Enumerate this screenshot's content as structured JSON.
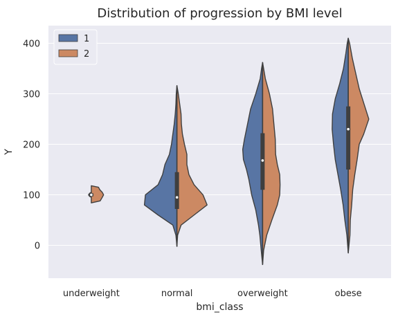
{
  "chart_data": {
    "type": "violin",
    "split": true,
    "title": "Distribution of progression by BMI level",
    "xlabel": "bmi_class",
    "ylabel": "Y",
    "categories": [
      "underweight",
      "normal",
      "overweight",
      "obese"
    ],
    "ylim": [
      -65,
      435
    ],
    "yticks": [
      0,
      100,
      200,
      300,
      400
    ],
    "grid": true,
    "legend": {
      "placement": "top-left",
      "entries": [
        "1",
        "2"
      ]
    },
    "colors": {
      "series_1": "#5875a4",
      "series_2": "#cc8963",
      "background": "#eaeaf2",
      "grid": "#ffffff",
      "outline": "#3f3f3f"
    },
    "series": [
      {
        "name": "1",
        "violins": [
          {
            "category": "underweight",
            "profile": [
              [
                95,
                0
              ],
              [
                97,
                0.05
              ],
              [
                100,
                0.08
              ],
              [
                103,
                0.05
              ],
              [
                105,
                0
              ]
            ],
            "quartiles": [
              97,
              100,
              103
            ]
          },
          {
            "category": "normal",
            "profile": [
              [
                -2,
                0
              ],
              [
                20,
                0.03
              ],
              [
                40,
                0.12
              ],
              [
                60,
                0.55
              ],
              [
                80,
                0.95
              ],
              [
                100,
                0.92
              ],
              [
                120,
                0.55
              ],
              [
                140,
                0.42
              ],
              [
                160,
                0.35
              ],
              [
                180,
                0.22
              ],
              [
                200,
                0.16
              ],
              [
                220,
                0.12
              ],
              [
                240,
                0.08
              ],
              [
                260,
                0.05
              ],
              [
                280,
                0.03
              ],
              [
                300,
                0.02
              ],
              [
                316,
                0
              ]
            ],
            "quartiles": [
              72,
              95,
              145
            ]
          },
          {
            "category": "overweight",
            "profile": [
              [
                -38,
                0
              ],
              [
                -10,
                0.04
              ],
              [
                20,
                0.08
              ],
              [
                40,
                0.12
              ],
              [
                70,
                0.2
              ],
              [
                100,
                0.32
              ],
              [
                130,
                0.4
              ],
              [
                150,
                0.47
              ],
              [
                170,
                0.56
              ],
              [
                190,
                0.58
              ],
              [
                210,
                0.53
              ],
              [
                240,
                0.44
              ],
              [
                270,
                0.35
              ],
              [
                300,
                0.2
              ],
              [
                330,
                0.07
              ],
              [
                350,
                0.03
              ],
              [
                362,
                0
              ]
            ],
            "quartiles": [
              110,
              168,
              222
            ]
          },
          {
            "category": "obese",
            "profile": [
              [
                -15,
                0
              ],
              [
                20,
                0.04
              ],
              [
                50,
                0.1
              ],
              [
                80,
                0.15
              ],
              [
                110,
                0.22
              ],
              [
                140,
                0.3
              ],
              [
                170,
                0.38
              ],
              [
                200,
                0.43
              ],
              [
                230,
                0.47
              ],
              [
                260,
                0.46
              ],
              [
                290,
                0.38
              ],
              [
                320,
                0.25
              ],
              [
                350,
                0.14
              ],
              [
                380,
                0.07
              ],
              [
                400,
                0.03
              ],
              [
                410,
                0
              ]
            ],
            "quartiles": [
              150,
              230,
              275
            ]
          }
        ]
      },
      {
        "name": "2",
        "violins": [
          {
            "category": "underweight",
            "profile": [
              [
                84,
                0
              ],
              [
                88,
                0.26
              ],
              [
                95,
                0.32
              ],
              [
                100,
                0.36
              ],
              [
                105,
                0.32
              ],
              [
                110,
                0.25
              ],
              [
                115,
                0.21
              ],
              [
                118,
                0
              ]
            ],
            "quartiles": [
              97,
              100,
              103
            ]
          },
          {
            "category": "normal",
            "profile": [
              [
                -2,
                0
              ],
              [
                20,
                0.02
              ],
              [
                40,
                0.12
              ],
              [
                60,
                0.5
              ],
              [
                80,
                0.88
              ],
              [
                100,
                0.76
              ],
              [
                120,
                0.5
              ],
              [
                140,
                0.35
              ],
              [
                160,
                0.29
              ],
              [
                180,
                0.29
              ],
              [
                200,
                0.22
              ],
              [
                220,
                0.16
              ],
              [
                240,
                0.13
              ],
              [
                260,
                0.12
              ],
              [
                280,
                0.08
              ],
              [
                300,
                0.04
              ],
              [
                316,
                0
              ]
            ],
            "quartiles": [
              72,
              95,
              145
            ]
          },
          {
            "category": "overweight",
            "profile": [
              [
                -38,
                0
              ],
              [
                -10,
                0.03
              ],
              [
                20,
                0.12
              ],
              [
                50,
                0.27
              ],
              [
                80,
                0.43
              ],
              [
                100,
                0.5
              ],
              [
                120,
                0.51
              ],
              [
                140,
                0.5
              ],
              [
                160,
                0.43
              ],
              [
                180,
                0.38
              ],
              [
                210,
                0.37
              ],
              [
                240,
                0.33
              ],
              [
                270,
                0.29
              ],
              [
                300,
                0.2
              ],
              [
                330,
                0.08
              ],
              [
                350,
                0.03
              ],
              [
                362,
                0
              ]
            ],
            "quartiles": [
              110,
              168,
              222
            ]
          },
          {
            "category": "obese",
            "profile": [
              [
                -15,
                0
              ],
              [
                20,
                0.05
              ],
              [
                50,
                0.06
              ],
              [
                80,
                0.1
              ],
              [
                110,
                0.13
              ],
              [
                140,
                0.19
              ],
              [
                170,
                0.26
              ],
              [
                200,
                0.32
              ],
              [
                220,
                0.45
              ],
              [
                250,
                0.6
              ],
              [
                280,
                0.46
              ],
              [
                310,
                0.32
              ],
              [
                340,
                0.22
              ],
              [
                370,
                0.12
              ],
              [
                400,
                0.04
              ],
              [
                410,
                0
              ]
            ],
            "quartiles": [
              150,
              230,
              275
            ]
          }
        ]
      }
    ]
  }
}
